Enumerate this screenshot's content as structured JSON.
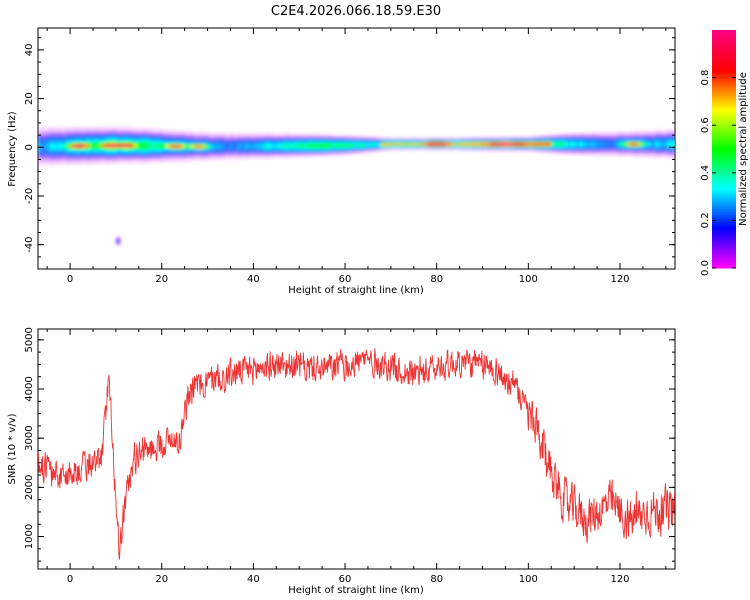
{
  "title": "C2E4.2026.066.18.59.E30",
  "colors": {
    "snr_line": "#ee3333",
    "spectrum_cmap": [
      "#ff00ff",
      "#0000ff",
      "#00ffff",
      "#00ff00",
      "#ffff00",
      "#ff0000",
      "#ff0080"
    ]
  },
  "chart_data": [
    {
      "type": "heatmap",
      "xlabel": "Height of straight line (km)",
      "ylabel": "Frequency (Hz)",
      "xlim": [
        -7,
        132
      ],
      "ylim": [
        -50,
        49
      ],
      "x_ticks": [
        0,
        20,
        40,
        60,
        80,
        100,
        120
      ],
      "y_ticks": [
        -40,
        -20,
        0,
        20,
        40
      ],
      "colorbar": {
        "label": "Normalized spectral amplitude",
        "range": [
          0,
          1
        ],
        "ticks": [
          "0.0",
          "0.2",
          "0.4",
          "0.6",
          "0.8"
        ]
      },
      "ridge_center_hz": [
        {
          "x": -7,
          "f": 0.5
        },
        {
          "x": 10,
          "f": 1.0
        },
        {
          "x": 30,
          "f": 0.5
        },
        {
          "x": 60,
          "f": 1.0
        },
        {
          "x": 70,
          "f": 1.5
        },
        {
          "x": 100,
          "f": 1.5
        },
        {
          "x": 132,
          "f": 1.5
        }
      ],
      "ridge_halfwidth_hz": [
        {
          "x": -7,
          "w": 6
        },
        {
          "x": 20,
          "w": 5
        },
        {
          "x": 60,
          "w": 3
        },
        {
          "x": 70,
          "w": 2
        },
        {
          "x": 100,
          "w": 2.2
        },
        {
          "x": 110,
          "w": 3.5
        },
        {
          "x": 132,
          "w": 4.5
        }
      ],
      "hotspots": [
        {
          "x": 2,
          "f": 0.5,
          "amp": 1.0
        },
        {
          "x": 9,
          "f": 1.5,
          "amp": 1.0
        },
        {
          "x": 12,
          "f": 0.5,
          "amp": 0.95
        },
        {
          "x": 23,
          "f": 0.5,
          "amp": 0.9
        },
        {
          "x": 28,
          "f": 0.5,
          "amp": 0.8
        },
        {
          "x": 80,
          "f": 1.5,
          "amp": 0.9
        },
        {
          "x": 95,
          "f": 1.5,
          "amp": 0.9
        },
        {
          "x": 123,
          "f": 1.5,
          "amp": 0.85
        }
      ],
      "isolated_blob": {
        "x": 10.5,
        "f": -38.5,
        "amp": 0.25
      }
    },
    {
      "type": "line",
      "xlabel": "Height of straight line (km)",
      "ylabel": "SNR (10 * v/v)",
      "xlim": [
        -7,
        132
      ],
      "ylim": [
        340,
        5220
      ],
      "x_ticks": [
        0,
        20,
        40,
        60,
        80,
        100,
        120
      ],
      "y_ticks": [
        1000,
        2000,
        3000,
        4000,
        5000
      ],
      "series_trend": [
        {
          "x": -7,
          "y": 2500
        },
        {
          "x": -2,
          "y": 2200
        },
        {
          "x": 3,
          "y": 2400
        },
        {
          "x": 7,
          "y": 2600
        },
        {
          "x": 8.5,
          "y": 4400
        },
        {
          "x": 9.5,
          "y": 2500
        },
        {
          "x": 10.8,
          "y": 700
        },
        {
          "x": 12,
          "y": 1700
        },
        {
          "x": 14,
          "y": 2600
        },
        {
          "x": 20,
          "y": 2900
        },
        {
          "x": 24,
          "y": 3000
        },
        {
          "x": 26,
          "y": 4000
        },
        {
          "x": 35,
          "y": 4300
        },
        {
          "x": 45,
          "y": 4500
        },
        {
          "x": 55,
          "y": 4400
        },
        {
          "x": 65,
          "y": 4600
        },
        {
          "x": 75,
          "y": 4300
        },
        {
          "x": 85,
          "y": 4550
        },
        {
          "x": 93,
          "y": 4400
        },
        {
          "x": 97,
          "y": 4000
        },
        {
          "x": 100,
          "y": 3500
        },
        {
          "x": 103,
          "y": 2800
        },
        {
          "x": 108,
          "y": 1700
        },
        {
          "x": 113,
          "y": 1350
        },
        {
          "x": 118,
          "y": 1700
        },
        {
          "x": 122,
          "y": 1300
        },
        {
          "x": 126,
          "y": 1500
        },
        {
          "x": 130,
          "y": 1550
        },
        {
          "x": 132,
          "y": 1500
        }
      ],
      "noise_amplitude": 330,
      "sample_count": 1400
    }
  ]
}
